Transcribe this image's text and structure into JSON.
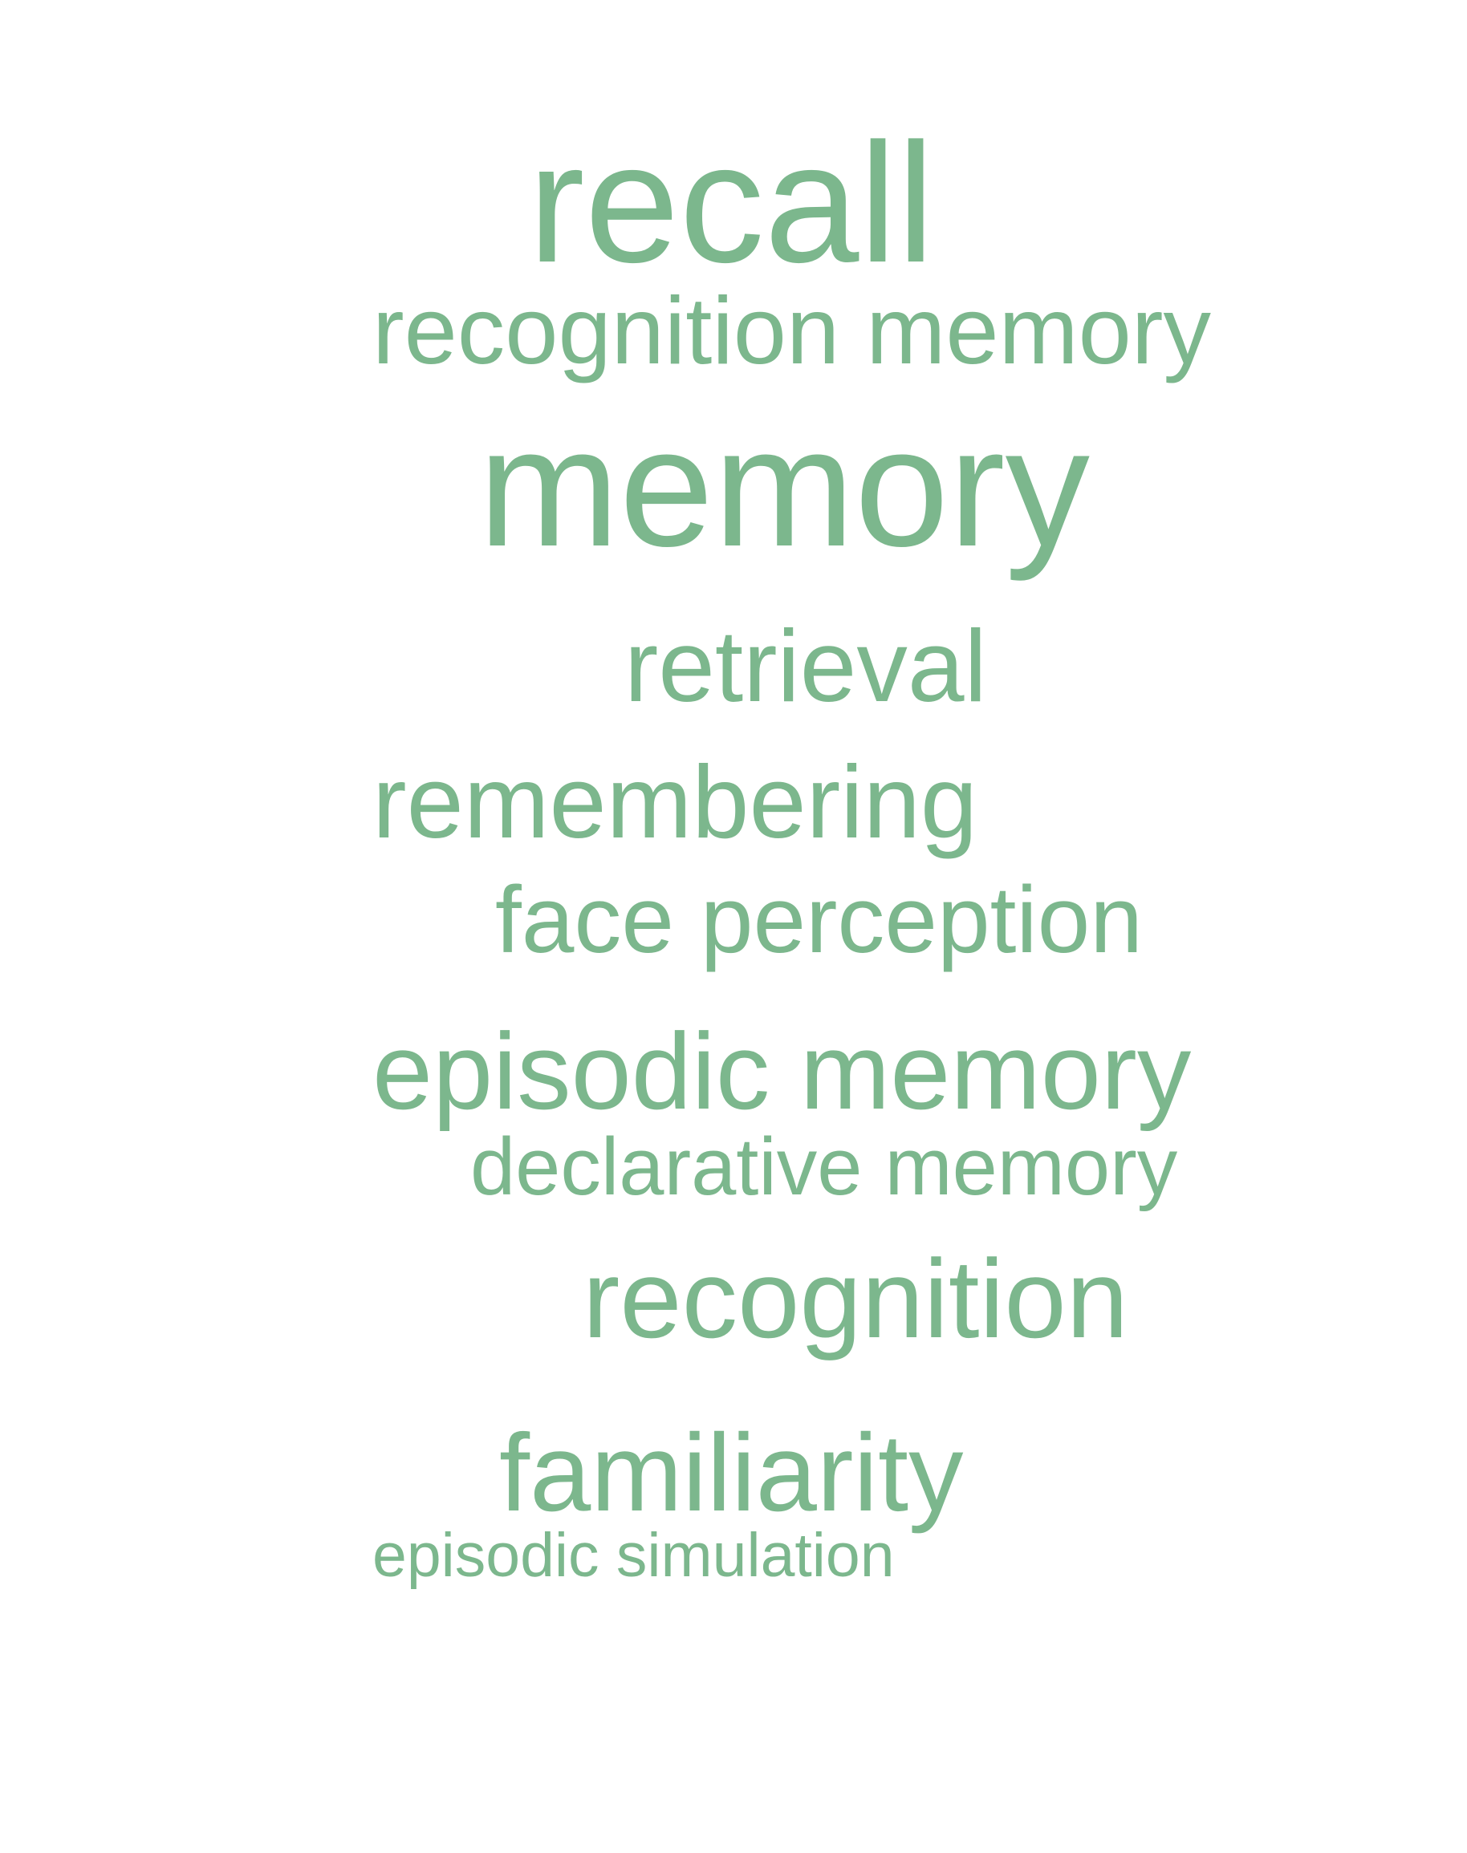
{
  "word_cloud": {
    "color": "#7cb78d",
    "background": "#ffffff",
    "words": [
      {
        "text": "recall"
      },
      {
        "text": "recognition memory"
      },
      {
        "text": "memory"
      },
      {
        "text": "retrieval"
      },
      {
        "text": "remembering"
      },
      {
        "text": "face perception"
      },
      {
        "text": "episodic memory"
      },
      {
        "text": "declarative memory"
      },
      {
        "text": "recognition"
      },
      {
        "text": "familiarity"
      },
      {
        "text": "episodic simulation"
      }
    ]
  }
}
